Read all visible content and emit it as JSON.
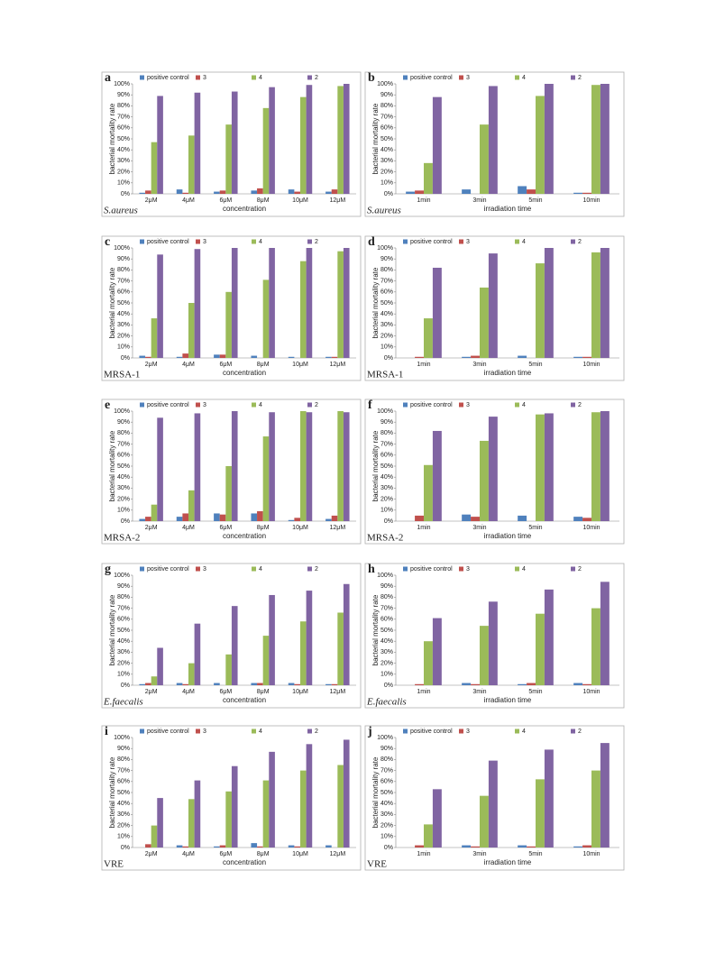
{
  "chart_data": [
    {
      "type": "bar",
      "panel_label": "a",
      "organism": "S.aureus",
      "y_label": "bacterial  mortality rate",
      "x_label": "concentration",
      "categories": [
        "2μM",
        "4μM",
        "6μM",
        "8μM",
        "10μM",
        "12μM"
      ],
      "series": [
        {
          "name": "positive control",
          "color": "#4f81bd",
          "values": [
            1,
            4,
            2,
            3,
            4,
            2
          ]
        },
        {
          "name": "3",
          "color": "#c0504d",
          "values": [
            3,
            1,
            3,
            5,
            2,
            4
          ]
        },
        {
          "name": "4",
          "color": "#9bbb59",
          "values": [
            47,
            53,
            63,
            78,
            88,
            98
          ]
        },
        {
          "name": "2",
          "color": "#8064a2",
          "values": [
            89,
            92,
            93,
            97,
            99,
            100
          ]
        }
      ],
      "ylim": [
        0,
        100
      ],
      "yticks": [
        {
          "value": 0,
          "label": "0%"
        },
        {
          "value": 10,
          "label": "10%"
        },
        {
          "value": 20,
          "label": "20%"
        },
        {
          "value": 30,
          "label": "30%"
        },
        {
          "value": 40,
          "label": "40%"
        },
        {
          "value": 50,
          "label": "50%"
        },
        {
          "value": 60,
          "label": "60%"
        },
        {
          "value": 70,
          "label": "70%"
        },
        {
          "value": 80,
          "label": "80%"
        },
        {
          "value": 90,
          "label": "90%"
        },
        {
          "value": 100,
          "label": "100%"
        }
      ]
    },
    {
      "type": "bar",
      "panel_label": "b",
      "organism": "S.aureus",
      "y_label": "bacterial  mortality rate",
      "x_label": "irradiation time",
      "categories": [
        "1min",
        "3min",
        "5min",
        "10min"
      ],
      "series": [
        {
          "name": "positive control",
          "color": "#4f81bd",
          "values": [
            2,
            4,
            7,
            1
          ]
        },
        {
          "name": "3",
          "color": "#c0504d",
          "values": [
            3,
            0,
            4,
            1
          ]
        },
        {
          "name": "4",
          "color": "#9bbb59",
          "values": [
            28,
            63,
            89,
            99
          ]
        },
        {
          "name": "2",
          "color": "#8064a2",
          "values": [
            88,
            98,
            100,
            100
          ]
        }
      ],
      "ylim": [
        0,
        100
      ],
      "yticks": [
        {
          "value": 0,
          "label": "0%"
        },
        {
          "value": 10,
          "label": "10%"
        },
        {
          "value": 20,
          "label": "20%"
        },
        {
          "value": 30,
          "label": "30%"
        },
        {
          "value": 40,
          "label": "40%"
        },
        {
          "value": 50,
          "label": "50%"
        },
        {
          "value": 60,
          "label": "60%"
        },
        {
          "value": 70,
          "label": "70%"
        },
        {
          "value": 80,
          "label": "80%"
        },
        {
          "value": 90,
          "label": "90%"
        },
        {
          "value": 100,
          "label": "100%"
        }
      ]
    },
    {
      "type": "bar",
      "panel_label": "c",
      "organism": "MRSA-1",
      "y_label": "bacterial  mortality rate",
      "x_label": "concentration",
      "categories": [
        "2μM",
        "4μM",
        "6μM",
        "8μM",
        "10μM",
        "12μM"
      ],
      "series": [
        {
          "name": "positive control",
          "color": "#4f81bd",
          "values": [
            2,
            1,
            3,
            2,
            1,
            1
          ]
        },
        {
          "name": "3",
          "color": "#c0504d",
          "values": [
            1,
            4,
            3,
            0,
            0,
            1
          ]
        },
        {
          "name": "4",
          "color": "#9bbb59",
          "values": [
            36,
            50,
            60,
            71,
            88,
            97
          ]
        },
        {
          "name": "2",
          "color": "#8064a2",
          "values": [
            94,
            99,
            100,
            100,
            100,
            100
          ]
        }
      ],
      "ylim": [
        0,
        100
      ],
      "yticks": [
        {
          "value": 0,
          "label": "0%"
        },
        {
          "value": 10,
          "label": "10%"
        },
        {
          "value": 20,
          "label": "20%"
        },
        {
          "value": 30,
          "label": "30%"
        },
        {
          "value": 40,
          "label": "40%"
        },
        {
          "value": 50,
          "label": "50%"
        },
        {
          "value": 60,
          "label": "60%"
        },
        {
          "value": 70,
          "label": "70%"
        },
        {
          "value": 80,
          "label": "80%"
        },
        {
          "value": 90,
          "label": "90%"
        },
        {
          "value": 100,
          "label": "100%"
        }
      ]
    },
    {
      "type": "bar",
      "panel_label": "d",
      "organism": "MRSA-1",
      "y_label": "bacterial  mortality rate",
      "x_label": "irradiation time",
      "categories": [
        "1min",
        "3min",
        "5min",
        "10min"
      ],
      "series": [
        {
          "name": "positive control",
          "color": "#4f81bd",
          "values": [
            0,
            1,
            2,
            1
          ]
        },
        {
          "name": "3",
          "color": "#c0504d",
          "values": [
            1,
            2,
            0,
            1
          ]
        },
        {
          "name": "4",
          "color": "#9bbb59",
          "values": [
            36,
            64,
            86,
            96
          ]
        },
        {
          "name": "2",
          "color": "#8064a2",
          "values": [
            82,
            95,
            100,
            100
          ]
        }
      ],
      "ylim": [
        0,
        100
      ],
      "yticks": [
        {
          "value": 0,
          "label": "0%"
        },
        {
          "value": 10,
          "label": "10%"
        },
        {
          "value": 20,
          "label": "20%"
        },
        {
          "value": 30,
          "label": "30%"
        },
        {
          "value": 40,
          "label": "40%"
        },
        {
          "value": 50,
          "label": "50%"
        },
        {
          "value": 60,
          "label": "60%"
        },
        {
          "value": 70,
          "label": "70%"
        },
        {
          "value": 80,
          "label": "80%"
        },
        {
          "value": 90,
          "label": "90%"
        },
        {
          "value": 100,
          "label": "100%"
        }
      ]
    },
    {
      "type": "bar",
      "panel_label": "e",
      "organism": "MRSA-2",
      "y_label": "bacterial  mortality rate",
      "x_label": "concentration",
      "categories": [
        "2μM",
        "4μM",
        "6μM",
        "8μM",
        "10μM",
        "12μM"
      ],
      "series": [
        {
          "name": "positive control",
          "color": "#4f81bd",
          "values": [
            2,
            4,
            7,
            7,
            1,
            2
          ]
        },
        {
          "name": "3",
          "color": "#c0504d",
          "values": [
            4,
            7,
            6,
            9,
            3,
            5
          ]
        },
        {
          "name": "4",
          "color": "#9bbb59",
          "values": [
            15,
            28,
            50,
            77,
            100,
            100
          ]
        },
        {
          "name": "2",
          "color": "#8064a2",
          "values": [
            94,
            98,
            100,
            99,
            99,
            99
          ]
        }
      ],
      "ylim": [
        0,
        100
      ],
      "yticks": [
        {
          "value": 0,
          "label": "0%"
        },
        {
          "value": 10,
          "label": "10%"
        },
        {
          "value": 20,
          "label": "20%"
        },
        {
          "value": 30,
          "label": "30%"
        },
        {
          "value": 40,
          "label": "40%"
        },
        {
          "value": 50,
          "label": "50%"
        },
        {
          "value": 60,
          "label": "60%"
        },
        {
          "value": 70,
          "label": "70%"
        },
        {
          "value": 80,
          "label": "80%"
        },
        {
          "value": 90,
          "label": "90%"
        },
        {
          "value": 100,
          "label": "100%"
        }
      ]
    },
    {
      "type": "bar",
      "panel_label": "f",
      "organism": "MRSA-2",
      "y_label": "bacterial  mortality rate",
      "x_label": "irradiation time",
      "categories": [
        "1min",
        "3min",
        "5min",
        "10min"
      ],
      "series": [
        {
          "name": "positive control",
          "color": "#4f81bd",
          "values": [
            0,
            6,
            5,
            4
          ]
        },
        {
          "name": "3",
          "color": "#c0504d",
          "values": [
            5,
            4,
            0,
            3
          ]
        },
        {
          "name": "4",
          "color": "#9bbb59",
          "values": [
            51,
            73,
            97,
            99
          ]
        },
        {
          "name": "2",
          "color": "#8064a2",
          "values": [
            82,
            95,
            98,
            100
          ]
        }
      ],
      "ylim": [
        0,
        100
      ],
      "yticks": [
        {
          "value": 0,
          "label": "0%"
        },
        {
          "value": 10,
          "label": "10%"
        },
        {
          "value": 20,
          "label": "20%"
        },
        {
          "value": 30,
          "label": "30%"
        },
        {
          "value": 40,
          "label": "40%"
        },
        {
          "value": 50,
          "label": "50%"
        },
        {
          "value": 60,
          "label": "60%"
        },
        {
          "value": 70,
          "label": "70%"
        },
        {
          "value": 80,
          "label": "80%"
        },
        {
          "value": 90,
          "label": "90%"
        },
        {
          "value": 100,
          "label": "100%"
        }
      ]
    },
    {
      "type": "bar",
      "panel_label": "g",
      "organism": "E.faecalis",
      "y_label": "bacterial  mortality rate",
      "x_label": "concentration",
      "categories": [
        "2μM",
        "4μM",
        "6μM",
        "8μM",
        "10μM",
        "12μM"
      ],
      "series": [
        {
          "name": "positive control",
          "color": "#4f81bd",
          "values": [
            1,
            2,
            2,
            2,
            2,
            1
          ]
        },
        {
          "name": "3",
          "color": "#c0504d",
          "values": [
            2,
            1,
            0,
            2,
            1,
            1
          ]
        },
        {
          "name": "4",
          "color": "#9bbb59",
          "values": [
            8,
            20,
            28,
            45,
            58,
            66
          ]
        },
        {
          "name": "2",
          "color": "#8064a2",
          "values": [
            34,
            56,
            72,
            82,
            86,
            92
          ]
        }
      ],
      "ylim": [
        0,
        100
      ],
      "yticks": [
        {
          "value": 0,
          "label": "0%"
        },
        {
          "value": 10,
          "label": "10%"
        },
        {
          "value": 20,
          "label": "20%"
        },
        {
          "value": 30,
          "label": "30%"
        },
        {
          "value": 40,
          "label": "40%"
        },
        {
          "value": 50,
          "label": "50%"
        },
        {
          "value": 60,
          "label": "60%"
        },
        {
          "value": 70,
          "label": "70%"
        },
        {
          "value": 80,
          "label": "80%"
        },
        {
          "value": 90,
          "label": "90%"
        },
        {
          "value": 100,
          "label": "100%"
        }
      ]
    },
    {
      "type": "bar",
      "panel_label": "h",
      "organism": "E.faecalis",
      "y_label": "bacterial  mortality rate",
      "x_label": "irradiation time",
      "categories": [
        "1min",
        "3min",
        "5min",
        "10min"
      ],
      "series": [
        {
          "name": "positive control",
          "color": "#4f81bd",
          "values": [
            0,
            2,
            1,
            2
          ]
        },
        {
          "name": "3",
          "color": "#c0504d",
          "values": [
            1,
            1,
            2,
            1
          ]
        },
        {
          "name": "4",
          "color": "#9bbb59",
          "values": [
            40,
            54,
            65,
            70
          ]
        },
        {
          "name": "2",
          "color": "#8064a2",
          "values": [
            61,
            76,
            87,
            94
          ]
        }
      ],
      "ylim": [
        0,
        100
      ],
      "yticks": [
        {
          "value": 0,
          "label": "0%"
        },
        {
          "value": 10,
          "label": "10%"
        },
        {
          "value": 20,
          "label": "20%"
        },
        {
          "value": 30,
          "label": "30%"
        },
        {
          "value": 40,
          "label": "40%"
        },
        {
          "value": 50,
          "label": "50%"
        },
        {
          "value": 60,
          "label": "60%"
        },
        {
          "value": 70,
          "label": "70%"
        },
        {
          "value": 80,
          "label": "80%"
        },
        {
          "value": 90,
          "label": "90%"
        },
        {
          "value": 100,
          "label": "100%"
        }
      ]
    },
    {
      "type": "bar",
      "panel_label": "i",
      "organism": "VRE",
      "y_label": "bacterial  mortality rate",
      "x_label": "concentration",
      "categories": [
        "2μM",
        "4μM",
        "6μM",
        "8μM",
        "10μM",
        "12μM"
      ],
      "series": [
        {
          "name": "positive control",
          "color": "#4f81bd",
          "values": [
            0,
            2,
            1,
            4,
            2,
            2
          ]
        },
        {
          "name": "3",
          "color": "#c0504d",
          "values": [
            3,
            1,
            2,
            1,
            1,
            0
          ]
        },
        {
          "name": "4",
          "color": "#9bbb59",
          "values": [
            20,
            44,
            51,
            61,
            70,
            75
          ]
        },
        {
          "name": "2",
          "color": "#8064a2",
          "values": [
            45,
            61,
            74,
            87,
            94,
            98
          ]
        }
      ],
      "ylim": [
        0,
        100
      ],
      "yticks": [
        {
          "value": 0,
          "label": "0%"
        },
        {
          "value": 10,
          "label": "10%"
        },
        {
          "value": 20,
          "label": "20%"
        },
        {
          "value": 30,
          "label": "30%"
        },
        {
          "value": 40,
          "label": "40%"
        },
        {
          "value": 50,
          "label": "50%"
        },
        {
          "value": 60,
          "label": "60%"
        },
        {
          "value": 70,
          "label": "70%"
        },
        {
          "value": 80,
          "label": "80%"
        },
        {
          "value": 90,
          "label": "90%"
        },
        {
          "value": 100,
          "label": "100%"
        }
      ]
    },
    {
      "type": "bar",
      "panel_label": "j",
      "organism": "VRE",
      "y_label": "bacterial  mortality rate",
      "x_label": "irradiation time",
      "categories": [
        "1min",
        "3min",
        "5min",
        "10min"
      ],
      "series": [
        {
          "name": "positive control",
          "color": "#4f81bd",
          "values": [
            0,
            2,
            2,
            1
          ]
        },
        {
          "name": "3",
          "color": "#c0504d",
          "values": [
            2,
            1,
            1,
            2
          ]
        },
        {
          "name": "4",
          "color": "#9bbb59",
          "values": [
            21,
            47,
            62,
            70
          ]
        },
        {
          "name": "2",
          "color": "#8064a2",
          "values": [
            53,
            79,
            89,
            95
          ]
        }
      ],
      "ylim": [
        0,
        100
      ],
      "yticks": [
        {
          "value": 0,
          "label": "0%"
        },
        {
          "value": 10,
          "label": "10%"
        },
        {
          "value": 20,
          "label": "20%"
        },
        {
          "value": 30,
          "label": "30%"
        },
        {
          "value": 40,
          "label": "40%"
        },
        {
          "value": 50,
          "label": "50%"
        },
        {
          "value": 60,
          "label": "60%"
        },
        {
          "value": 70,
          "label": "70%"
        },
        {
          "value": 80,
          "label": "80%"
        },
        {
          "value": 90,
          "label": "90%"
        },
        {
          "value": 100,
          "label": "100%"
        }
      ]
    }
  ]
}
